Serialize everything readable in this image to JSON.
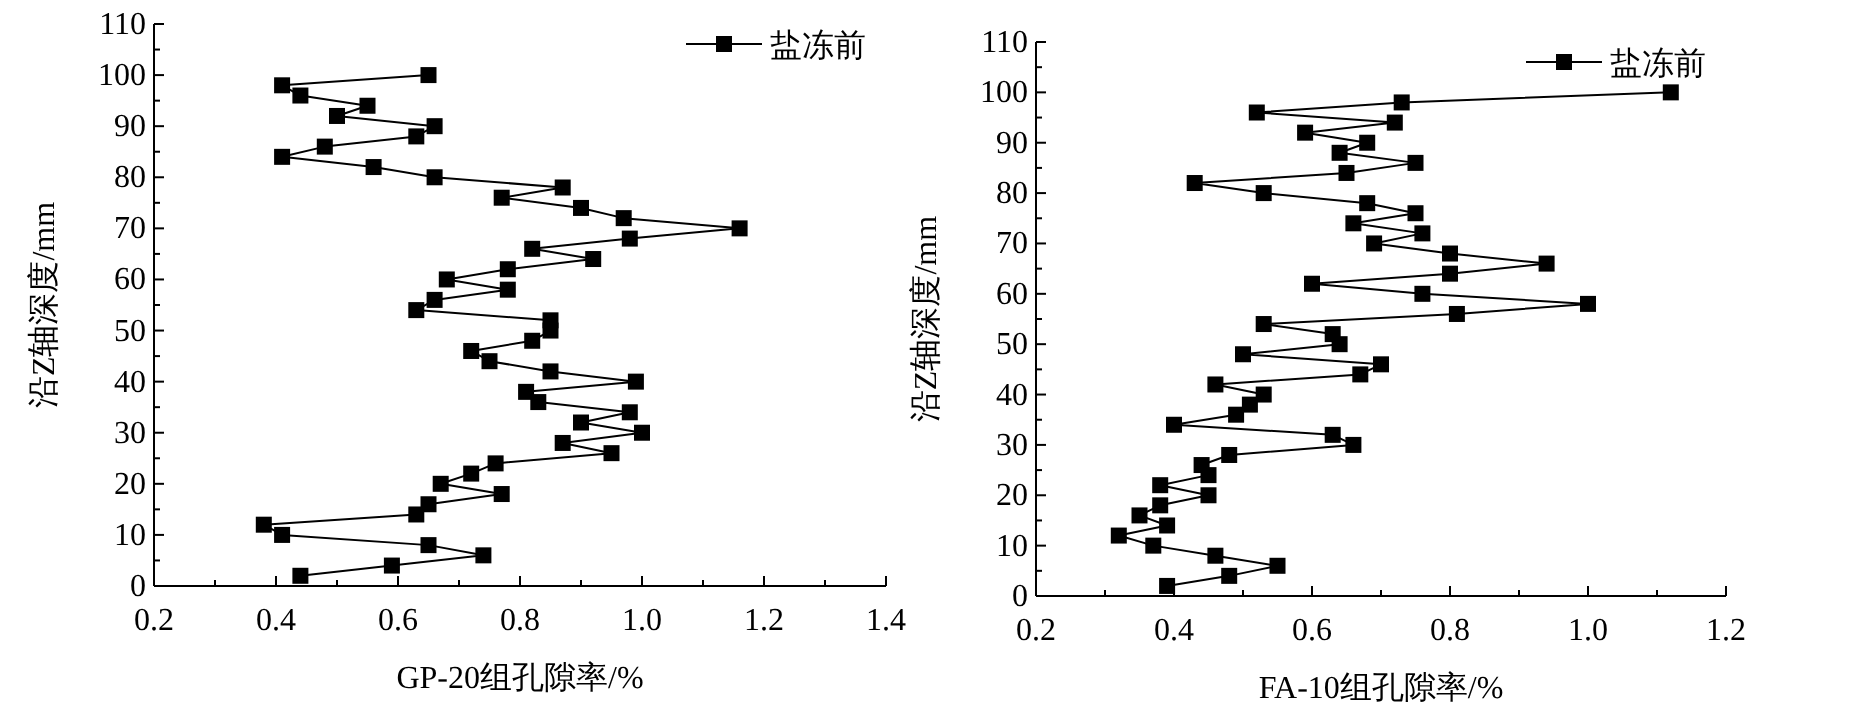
{
  "chart_data": [
    {
      "type": "line",
      "xlabel": "GP-20组孔隙率/%",
      "ylabel": "沿Z轴深度/mm",
      "xlim": [
        0.2,
        1.4
      ],
      "xticks": [
        0.2,
        0.4,
        0.6,
        0.8,
        {
          "value": 1.0,
          "label": "1.0"
        },
        1.2,
        1.4
      ],
      "ylim": [
        0,
        110
      ],
      "yticks": [
        0,
        10,
        20,
        30,
        40,
        50,
        60,
        70,
        80,
        90,
        100,
        110
      ],
      "marker": "square",
      "line_style": "solid",
      "legend": "top right",
      "series": [
        {
          "name": "盐冻前",
          "color": "#000000",
          "x": [
            0.65,
            0.41,
            0.44,
            0.55,
            0.5,
            0.66,
            0.63,
            0.48,
            0.41,
            0.56,
            0.66,
            0.87,
            0.77,
            0.9,
            0.97,
            1.16,
            0.98,
            0.82,
            0.92,
            0.78,
            0.68,
            0.78,
            0.66,
            0.63,
            0.85,
            0.85,
            0.82,
            0.72,
            0.75,
            0.85,
            0.99,
            0.81,
            0.83,
            0.98,
            0.9,
            1.0,
            0.87,
            0.95,
            0.76,
            0.72,
            0.67,
            0.77,
            0.65,
            0.63,
            0.38,
            0.41,
            0.65,
            0.74,
            0.59,
            0.44
          ],
          "values": [
            100,
            98,
            96,
            94,
            92,
            90,
            88,
            86,
            84,
            82,
            80,
            78,
            76,
            74,
            72,
            70,
            68,
            66,
            64,
            62,
            60,
            58,
            56,
            54,
            52,
            50,
            48,
            46,
            44,
            42,
            40,
            38,
            36,
            34,
            32,
            30,
            28,
            26,
            24,
            22,
            20,
            18,
            16,
            14,
            12,
            10,
            8,
            6,
            4,
            2
          ]
        }
      ]
    },
    {
      "type": "line",
      "xlabel": "FA-10组孔隙率/%",
      "ylabel": "沿Z轴深度/mm",
      "xlim": [
        0.2,
        1.2
      ],
      "xticks": [
        0.2,
        0.4,
        0.6,
        0.8,
        {
          "value": 1.0,
          "label": "1.0"
        },
        1.2
      ],
      "ylim": [
        0,
        110
      ],
      "yticks": [
        0,
        10,
        20,
        30,
        40,
        50,
        60,
        70,
        80,
        90,
        100,
        110
      ],
      "marker": "square",
      "line_style": "solid",
      "legend": "top right",
      "series": [
        {
          "name": "盐冻前",
          "color": "#000000",
          "x": [
            1.12,
            0.73,
            0.52,
            0.72,
            0.59,
            0.68,
            0.64,
            0.75,
            0.65,
            0.43,
            0.53,
            0.68,
            0.75,
            0.66,
            0.76,
            0.69,
            0.8,
            0.94,
            0.8,
            0.6,
            0.76,
            1.0,
            0.81,
            0.53,
            0.63,
            0.64,
            0.5,
            0.7,
            0.67,
            0.46,
            0.53,
            0.51,
            0.49,
            0.4,
            0.63,
            0.66,
            0.48,
            0.44,
            0.45,
            0.38,
            0.45,
            0.38,
            0.35,
            0.39,
            0.32,
            0.37,
            0.46,
            0.55,
            0.48,
            0.39
          ],
          "values": [
            100,
            98,
            96,
            94,
            92,
            90,
            88,
            86,
            84,
            82,
            80,
            78,
            76,
            74,
            72,
            70,
            68,
            66,
            64,
            62,
            60,
            58,
            56,
            54,
            52,
            50,
            48,
            46,
            44,
            42,
            40,
            38,
            36,
            34,
            32,
            30,
            28,
            26,
            24,
            22,
            20,
            18,
            16,
            14,
            12,
            10,
            8,
            6,
            4,
            2
          ]
        }
      ]
    }
  ]
}
